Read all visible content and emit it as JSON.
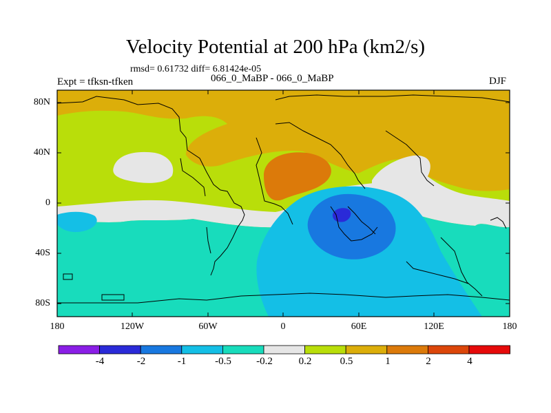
{
  "title": "Velocity Potential at 200 hPa (km2/s)",
  "stats_line": "rmsd= 0.61732 diff= 6.81424e-05",
  "experiment_label": "Expt = tfksn-tfken",
  "experiments": "066_0_MaBP - 066_0_MaBP",
  "season": "DJF",
  "lat_labels": [
    "80N",
    "40N",
    "0",
    "40S",
    "80S"
  ],
  "lon_labels": [
    "180",
    "120W",
    "60W",
    "0",
    "60E",
    "120E",
    "180"
  ],
  "colorbar": {
    "labels": [
      "-4",
      "-2",
      "-1",
      "-0.5",
      "-0.2",
      "0.2",
      "0.5",
      "1",
      "2",
      "4"
    ],
    "colors": [
      "#8a1ee6",
      "#2a2ad8",
      "#1878e0",
      "#14bfe6",
      "#18dcbc",
      "#e6e6e6",
      "#b9de0a",
      "#dcae0a",
      "#dc7a0a",
      "#dc460a",
      "#e60a0a"
    ]
  }
}
